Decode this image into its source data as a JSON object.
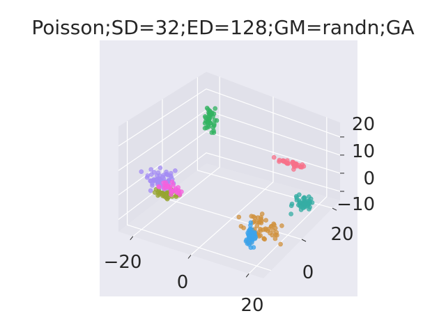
{
  "chart_data": {
    "type": "scatter",
    "projection": "3d",
    "title": "Poisson;SD=32;ED=128;GM=randn;GA",
    "xlabel": "",
    "ylabel": "",
    "zlabel": "",
    "grid": true,
    "legend": "none",
    "xlim": [
      -25,
      25
    ],
    "ylim": [
      -25,
      25
    ],
    "zlim": [
      -15,
      28
    ],
    "x_ticks": [
      "−20",
      "0",
      "20"
    ],
    "y_ticks": [
      "0",
      "20"
    ],
    "z_ticks": [
      "20",
      "10",
      "0",
      "−10"
    ],
    "colors": {
      "pane": "#eaeaf2",
      "grid": "#ffffff",
      "text": "#262626"
    },
    "series": [
      {
        "color": "#33b362",
        "center": [
          -19,
          18,
          12
        ],
        "spread": [
          1.0,
          0.8,
          3.5
        ],
        "n": 40
      },
      {
        "color": "#f77189",
        "center": [
          9,
          22,
          0
        ],
        "spread": [
          2.8,
          0.5,
          0.6
        ],
        "n": 35
      },
      {
        "color": "#36ada4",
        "center": [
          20,
          10,
          -6
        ],
        "spread": [
          1.8,
          1.8,
          1.2
        ],
        "n": 45
      },
      {
        "color": "#a48cf4",
        "center": [
          -18,
          -13,
          3
        ],
        "spread": [
          2.2,
          1.8,
          1.6
        ],
        "n": 60
      },
      {
        "color": "#97a431",
        "center": [
          -15,
          -13,
          -2
        ],
        "spread": [
          2.2,
          1.0,
          0.6
        ],
        "n": 35
      },
      {
        "color": "#f561dd",
        "center": [
          -14,
          -12,
          0
        ],
        "spread": [
          2.2,
          1.0,
          0.8
        ],
        "n": 30
      },
      {
        "color": "#d0913d",
        "center": [
          16,
          -10,
          -6
        ],
        "spread": [
          3.0,
          1.0,
          3.0
        ],
        "n": 55
      },
      {
        "color": "#3ba3ec",
        "center": [
          14,
          -13,
          -8
        ],
        "spread": [
          1.2,
          1.0,
          3.0
        ],
        "n": 40
      }
    ]
  }
}
